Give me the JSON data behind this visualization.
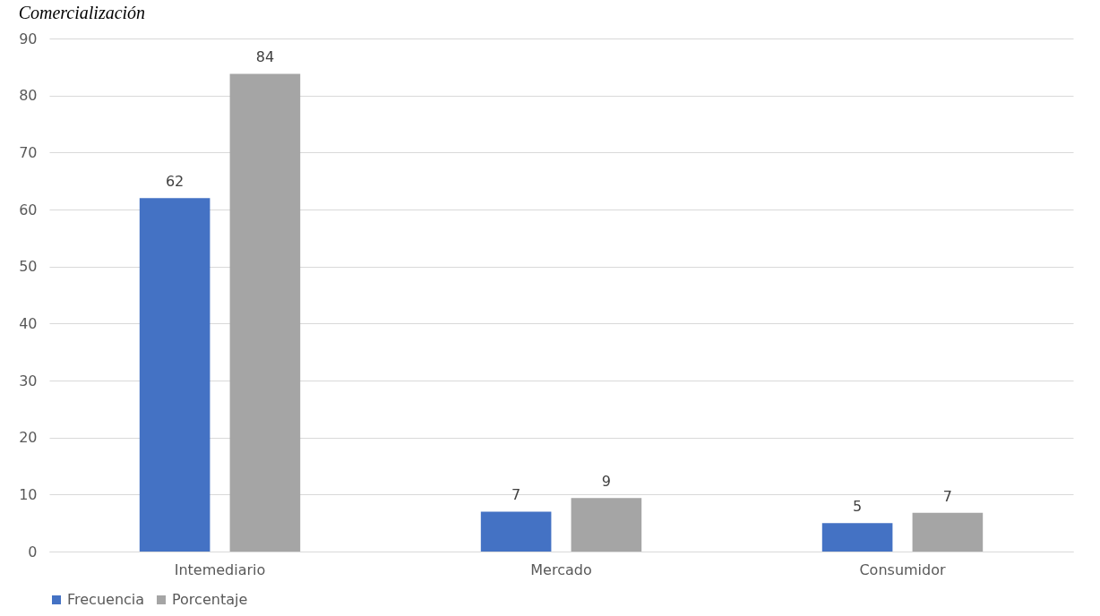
{
  "chart_data": {
    "type": "bar",
    "title": "Comercialización",
    "categories": [
      "Intemediario",
      "Mercado",
      "Consumidor"
    ],
    "series": [
      {
        "name": "Frecuencia",
        "color": "#4472c4",
        "values": [
          62,
          7,
          5
        ],
        "value_labels": [
          "62",
          "7",
          "5"
        ]
      },
      {
        "name": "Porcentaje",
        "color": "#a5a5a5",
        "values": [
          83.8,
          9.4,
          6.8
        ],
        "value_labels": [
          "84",
          "9",
          "7"
        ]
      }
    ],
    "ylim": [
      0,
      90
    ],
    "yticks": [
      0,
      10,
      20,
      30,
      40,
      50,
      60,
      70,
      80,
      90
    ],
    "grid": "y",
    "legend": "bottom"
  }
}
